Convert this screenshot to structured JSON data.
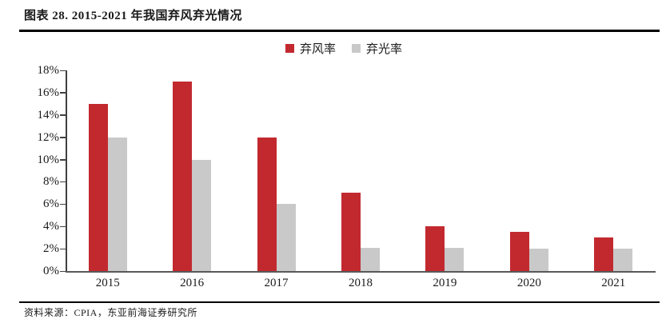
{
  "figure": {
    "title": "图表 28. 2015-2021 年我国弃风弃光情况"
  },
  "chart_data": {
    "type": "bar",
    "title": "",
    "xlabel": "",
    "ylabel": "",
    "categories": [
      "2015",
      "2016",
      "2017",
      "2018",
      "2019",
      "2020",
      "2021"
    ],
    "series": [
      {
        "name": "弃风率",
        "color": "#c2292f",
        "values": [
          15,
          17,
          12,
          7,
          4,
          3.5,
          3
        ]
      },
      {
        "name": "弃光率",
        "color": "#c9c9c9",
        "values": [
          12,
          10,
          6,
          2.1,
          2.1,
          2,
          2
        ]
      }
    ],
    "unit": "%",
    "ylim": [
      0,
      18
    ],
    "ytick_step": 2,
    "ytick_labels": [
      "0%",
      "2%",
      "4%",
      "6%",
      "8%",
      "10%",
      "12%",
      "14%",
      "16%",
      "18%"
    ],
    "legend_position": "top-center",
    "grid": false,
    "colors": {
      "axis_x": "#595959",
      "axis_y": "#404040",
      "text": "#1a1a1a"
    }
  },
  "footer": {
    "source": "资料来源：CPIA，东亚前海证券研究所"
  }
}
